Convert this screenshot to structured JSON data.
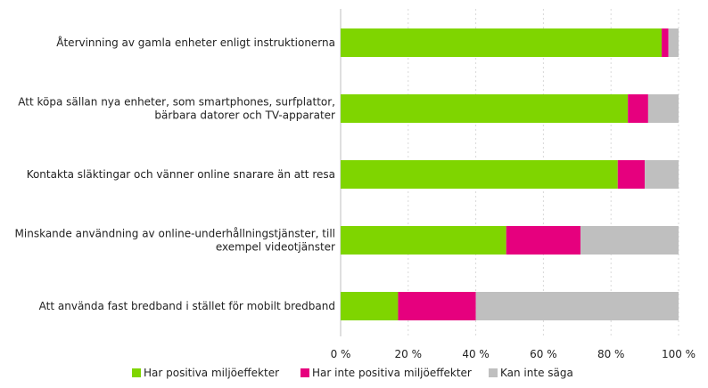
{
  "chart_data": {
    "type": "bar",
    "orientation": "horizontal",
    "stacked": true,
    "categories": [
      [
        "Återvinning av gamla enheter enligt instruktionerna"
      ],
      [
        "Att köpa sällan nya enheter, som smartphones, surfplattor,",
        "bärbara datorer och TV-apparater"
      ],
      [
        "Kontakta släktingar och vänner online snarare än att resa"
      ],
      [
        "Minskande användning av online-underhållningstjänster, till",
        "exempel videotjänster"
      ],
      [
        "Att använda fast bredband i stället för mobilt bredband"
      ]
    ],
    "series": [
      {
        "name": "Har positiva miljöeffekter",
        "color": "#7fd500",
        "values": [
          95,
          85,
          82,
          49,
          17
        ]
      },
      {
        "name": "Har inte positiva miljöeffekter",
        "color": "#e6007e",
        "values": [
          2,
          6,
          8,
          22,
          23
        ]
      },
      {
        "name": "Kan inte säga",
        "color": "#bfbfbf",
        "values": [
          3,
          9,
          10,
          29,
          60
        ]
      }
    ],
    "xlim": [
      0,
      100
    ],
    "xticks": [
      0,
      20,
      40,
      60,
      80,
      100
    ],
    "xtick_labels": [
      "0 %",
      "20 %",
      "40 %",
      "60 %",
      "80 %",
      "100 %"
    ],
    "grid": true,
    "legend": "bottom",
    "title": "",
    "xlabel": "",
    "ylabel": ""
  }
}
